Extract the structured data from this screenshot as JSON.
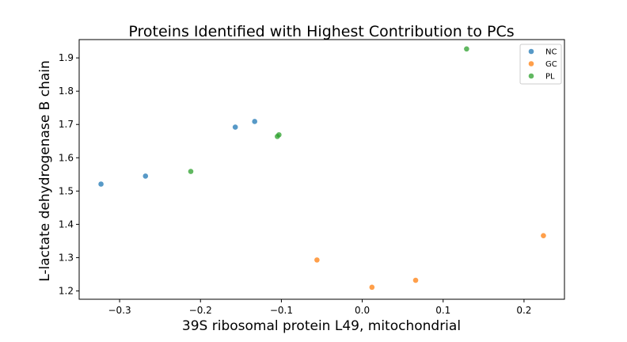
{
  "chart_data": {
    "type": "scatter",
    "title": "Proteins Identified with Highest Contribution to PCs",
    "xlabel": "39S ribosomal protein L49, mitochondrial",
    "ylabel": "L-lactate dehydrogenase B chain",
    "xlim": [
      -0.35,
      0.25
    ],
    "ylim": [
      1.175,
      1.955
    ],
    "xticks": [
      -0.3,
      -0.2,
      -0.1,
      0.0,
      0.1,
      0.2
    ],
    "xtick_labels": [
      "−0.3",
      "−0.2",
      "−0.1",
      "0.0",
      "0.1",
      "0.2"
    ],
    "yticks": [
      1.2,
      1.3,
      1.4,
      1.5,
      1.6,
      1.7,
      1.8,
      1.9
    ],
    "ytick_labels": [
      "1.2",
      "1.3",
      "1.4",
      "1.5",
      "1.6",
      "1.7",
      "1.8",
      "1.9"
    ],
    "grid": false,
    "legend_position": "top-right",
    "series": [
      {
        "name": "NC",
        "color": "#1f77b4",
        "points": [
          {
            "x": -0.323,
            "y": 1.521
          },
          {
            "x": -0.268,
            "y": 1.545
          },
          {
            "x": -0.157,
            "y": 1.692
          },
          {
            "x": -0.133,
            "y": 1.709
          }
        ]
      },
      {
        "name": "GC",
        "color": "#ff7f0e",
        "points": [
          {
            "x": -0.056,
            "y": 1.293
          },
          {
            "x": 0.012,
            "y": 1.211
          },
          {
            "x": 0.066,
            "y": 1.232
          },
          {
            "x": 0.224,
            "y": 1.366
          }
        ]
      },
      {
        "name": "PL",
        "color": "#2ca02c",
        "points": [
          {
            "x": -0.212,
            "y": 1.559
          },
          {
            "x": -0.105,
            "y": 1.664
          },
          {
            "x": -0.103,
            "y": 1.669
          },
          {
            "x": 0.129,
            "y": 1.927
          }
        ]
      }
    ]
  }
}
